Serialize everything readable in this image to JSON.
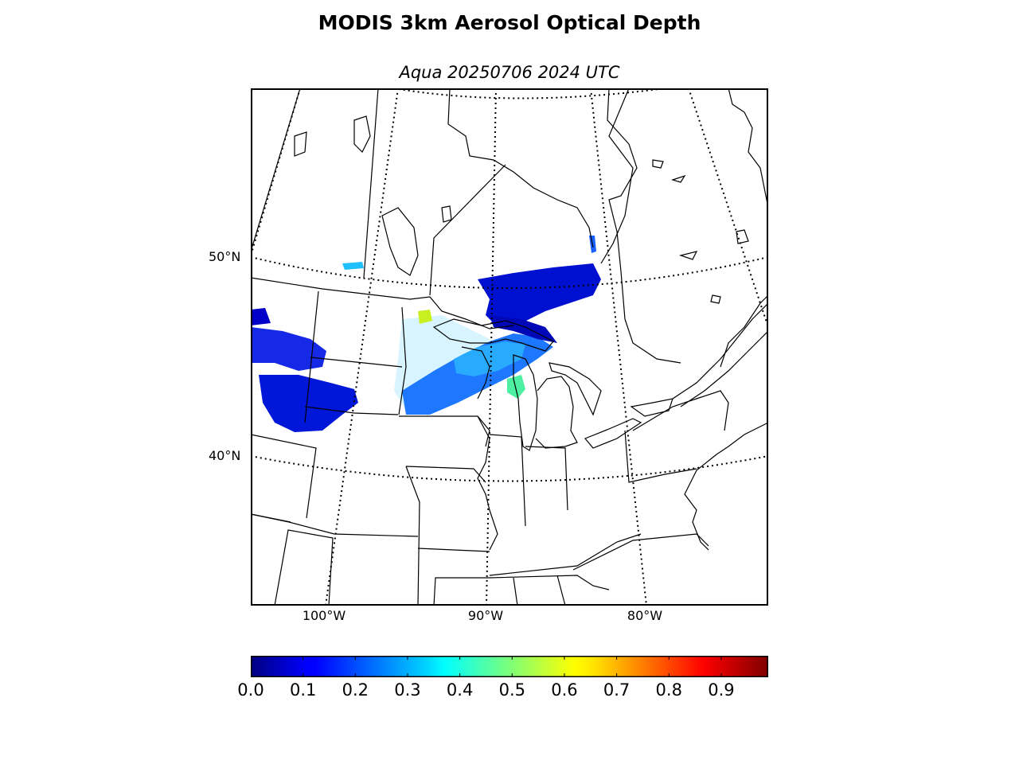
{
  "title": "MODIS 3km Aerosol Optical Depth",
  "subtitle": "Aqua 20250706 2024 UTC",
  "map": {
    "lat_labels": [
      {
        "text": "50°N",
        "value": 50
      },
      {
        "text": "40°N",
        "value": 40
      }
    ],
    "lon_labels": [
      {
        "text": "100°W",
        "value": -100
      },
      {
        "text": "90°W",
        "value": -90
      },
      {
        "text": "80°W",
        "value": -80
      }
    ],
    "aerosol_regions": [
      {
        "name": "dakotas-west",
        "aod": 0.1
      },
      {
        "name": "minnesota-wisconsin",
        "aod": 0.3
      },
      {
        "name": "lake-superior-north",
        "aod": 0.1
      },
      {
        "name": "lake-michigan-west",
        "aod": 0.45
      }
    ]
  },
  "colorbar": {
    "min": 0.0,
    "max": 0.99,
    "colormap": "jet",
    "ticks": [
      "0.0",
      "0.1",
      "0.2",
      "0.3",
      "0.4",
      "0.5",
      "0.6",
      "0.7",
      "0.8",
      "0.9"
    ]
  }
}
